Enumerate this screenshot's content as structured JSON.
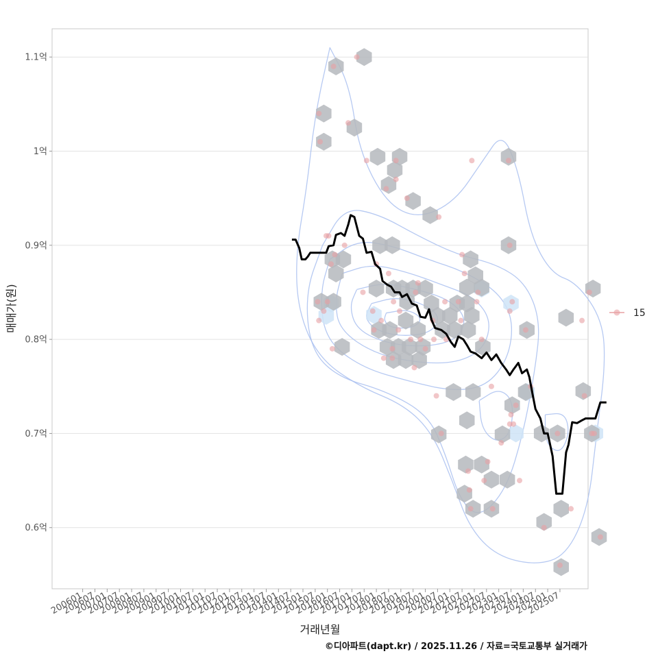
{
  "chart_data": {
    "type": "scatter",
    "title": "",
    "xlabel": "거래년월",
    "ylabel": "매매가(원)",
    "caption": "©디아파트(dapt.kr) / 2025.11.26 / 자료=국토교통부 실거래가",
    "legend": {
      "position": "right",
      "entries": [
        "15"
      ]
    },
    "x_ticks": [
      "200601",
      "200607",
      "200701",
      "200707",
      "200801",
      "200807",
      "200901",
      "200907",
      "201001",
      "201007",
      "201101",
      "201107",
      "201201",
      "201207",
      "201301",
      "201307",
      "201401",
      "201407",
      "201501",
      "201507",
      "201601",
      "201607",
      "201701",
      "201707",
      "201801",
      "201807",
      "201901",
      "201907",
      "202001",
      "202007",
      "202101",
      "202107",
      "202201",
      "202207",
      "202301",
      "202307",
      "202401",
      "202407",
      "202501",
      "202507"
    ],
    "y_ticks": [
      {
        "value": 0.6,
        "label": "0.6억"
      },
      {
        "value": 0.7,
        "label": "0.7억"
      },
      {
        "value": 0.8,
        "label": "0.8억"
      },
      {
        "value": 0.9,
        "label": "0.9억"
      },
      {
        "value": 1.0,
        "label": "1억"
      },
      {
        "value": 1.1,
        "label": "1.1억"
      }
    ],
    "xlim": [
      -2.5,
      41.3
    ],
    "ylim": [
      0.535,
      1.13
    ],
    "x_unit": "half-year index (0 = 200601)",
    "y_unit": "억원",
    "points": [
      [
        19.2,
        0.84
      ],
      [
        19.3,
        0.82
      ],
      [
        19.7,
        0.83
      ],
      [
        19.9,
        0.91
      ],
      [
        20.1,
        0.91
      ],
      [
        20.3,
        0.88
      ],
      [
        20.0,
        0.84
      ],
      [
        20.4,
        0.79
      ],
      [
        20.5,
        1.09
      ],
      [
        19.3,
        1.04
      ],
      [
        19.4,
        1.01
      ],
      [
        21.7,
        1.03
      ],
      [
        21.4,
        0.9
      ],
      [
        20.6,
        0.89
      ],
      [
        22.4,
        1.1
      ],
      [
        22.9,
        0.85
      ],
      [
        23.2,
        0.99
      ],
      [
        23.7,
        0.83
      ],
      [
        23.8,
        0.81
      ],
      [
        24.0,
        0.88
      ],
      [
        24.4,
        0.82
      ],
      [
        24.6,
        0.78
      ],
      [
        24.8,
        0.96
      ],
      [
        25.0,
        0.87
      ],
      [
        25.3,
        0.79
      ],
      [
        25.3,
        0.78
      ],
      [
        25.4,
        0.84
      ],
      [
        25.6,
        0.97
      ],
      [
        25.6,
        0.99
      ],
      [
        25.9,
        0.83
      ],
      [
        25.8,
        0.81
      ],
      [
        26.5,
        0.95
      ],
      [
        26.8,
        0.8
      ],
      [
        27.1,
        0.77
      ],
      [
        27.2,
        0.85
      ],
      [
        27.4,
        0.86
      ],
      [
        27.6,
        0.8
      ],
      [
        28.0,
        0.79
      ],
      [
        28.6,
        0.82
      ],
      [
        28.7,
        0.8
      ],
      [
        28.9,
        0.74
      ],
      [
        29.3,
        0.7
      ],
      [
        29.1,
        0.93
      ],
      [
        29.6,
        0.84
      ],
      [
        29.7,
        0.8
      ],
      [
        30.7,
        0.84
      ],
      [
        30.9,
        0.82
      ],
      [
        31.0,
        0.89
      ],
      [
        31.2,
        0.87
      ],
      [
        31.5,
        0.66
      ],
      [
        31.6,
        0.64
      ],
      [
        31.7,
        0.62
      ],
      [
        31.8,
        0.99
      ],
      [
        32.2,
        0.84
      ],
      [
        32.6,
        0.8
      ],
      [
        32.3,
        0.85
      ],
      [
        32.8,
        0.65
      ],
      [
        33.1,
        0.67
      ],
      [
        33.5,
        0.62
      ],
      [
        33.4,
        0.75
      ],
      [
        34.2,
        0.69
      ],
      [
        34.8,
        0.99
      ],
      [
        34.9,
        0.9
      ],
      [
        35.1,
        0.84
      ],
      [
        34.9,
        0.83
      ],
      [
        34.9,
        0.71
      ],
      [
        35.0,
        0.72
      ],
      [
        35.2,
        0.71
      ],
      [
        35.4,
        0.73
      ],
      [
        35.7,
        0.65
      ],
      [
        36.2,
        0.81
      ],
      [
        36.6,
        0.75
      ],
      [
        37.7,
        0.6
      ],
      [
        38.8,
        0.7
      ],
      [
        39.0,
        0.56
      ],
      [
        39.9,
        0.62
      ],
      [
        40.8,
        0.82
      ],
      [
        41.0,
        0.74
      ],
      [
        41.4,
        0.85
      ],
      [
        41.6,
        0.7
      ],
      [
        41.8,
        0.7
      ],
      [
        42.3,
        0.59
      ]
    ],
    "hex_bins": [
      [
        20.7,
        1.09
      ],
      [
        19.7,
        1.04
      ],
      [
        19.7,
        1.01
      ],
      [
        22.2,
        1.025
      ],
      [
        23.0,
        1.1
      ],
      [
        24.1,
        0.994
      ],
      [
        25.9,
        0.994
      ],
      [
        25.5,
        0.98
      ],
      [
        25.0,
        0.964
      ],
      [
        27.0,
        0.947
      ],
      [
        28.4,
        0.932
      ],
      [
        24.3,
        0.9
      ],
      [
        25.3,
        0.9
      ],
      [
        20.4,
        0.885
      ],
      [
        21.3,
        0.885
      ],
      [
        20.7,
        0.87
      ],
      [
        24.0,
        0.854
      ],
      [
        25.4,
        0.854
      ],
      [
        26.1,
        0.854
      ],
      [
        27.0,
        0.854
      ],
      [
        28.0,
        0.854
      ],
      [
        19.5,
        0.84
      ],
      [
        20.5,
        0.84
      ],
      [
        26.5,
        0.84
      ],
      [
        28.5,
        0.838
      ],
      [
        30.6,
        0.838
      ],
      [
        31.4,
        0.838
      ],
      [
        29.0,
        0.825
      ],
      [
        30.0,
        0.825
      ],
      [
        31.8,
        0.825
      ],
      [
        26.4,
        0.82
      ],
      [
        24.2,
        0.81
      ],
      [
        25.1,
        0.81
      ],
      [
        27.4,
        0.81
      ],
      [
        29.4,
        0.81
      ],
      [
        30.4,
        0.81
      ],
      [
        31.5,
        0.81
      ],
      [
        36.3,
        0.81
      ],
      [
        21.2,
        0.792
      ],
      [
        24.9,
        0.792
      ],
      [
        25.8,
        0.792
      ],
      [
        26.7,
        0.792
      ],
      [
        27.8,
        0.792
      ],
      [
        32.7,
        0.792
      ],
      [
        26.4,
        0.778
      ],
      [
        25.4,
        0.778
      ],
      [
        27.5,
        0.778
      ],
      [
        31.7,
        0.885
      ],
      [
        32.1,
        0.868
      ],
      [
        32.6,
        0.855
      ],
      [
        31.4,
        0.855
      ],
      [
        30.3,
        0.744
      ],
      [
        31.9,
        0.744
      ],
      [
        39.5,
        0.823
      ],
      [
        40.9,
        0.745
      ],
      [
        31.4,
        0.714
      ],
      [
        29.1,
        0.699
      ],
      [
        34.3,
        0.699
      ],
      [
        35.1,
        0.73
      ],
      [
        36.2,
        0.744
      ],
      [
        37.5,
        0.7
      ],
      [
        38.8,
        0.7
      ],
      [
        41.6,
        0.7
      ],
      [
        31.3,
        0.667
      ],
      [
        32.6,
        0.667
      ],
      [
        33.4,
        0.651
      ],
      [
        34.7,
        0.651
      ],
      [
        31.2,
        0.636
      ],
      [
        31.9,
        0.62
      ],
      [
        33.4,
        0.62
      ],
      [
        37.7,
        0.606
      ],
      [
        39.1,
        0.62
      ],
      [
        42.2,
        0.59
      ],
      [
        39.1,
        0.558
      ],
      [
        41.7,
        0.854
      ],
      [
        34.8,
        0.9
      ],
      [
        34.8,
        0.994
      ]
    ],
    "light_hex_bins": [
      [
        20.3,
        0.838
      ],
      [
        23.8,
        0.826
      ],
      [
        32.6,
        0.854
      ],
      [
        35.0,
        0.838
      ],
      [
        35.4,
        0.7
      ],
      [
        36.3,
        0.744
      ],
      [
        41.9,
        0.7
      ],
      [
        19.9,
        0.825
      ]
    ],
    "median_line": [
      [
        17.1,
        0.906
      ],
      [
        17.4,
        0.906
      ],
      [
        17.7,
        0.897
      ],
      [
        17.9,
        0.885
      ],
      [
        18.2,
        0.885
      ],
      [
        18.4,
        0.888
      ],
      [
        18.6,
        0.892
      ],
      [
        19.2,
        0.892
      ],
      [
        19.9,
        0.892
      ],
      [
        20.1,
        0.899
      ],
      [
        20.5,
        0.9
      ],
      [
        20.7,
        0.911
      ],
      [
        21.1,
        0.913
      ],
      [
        21.4,
        0.91
      ],
      [
        21.7,
        0.922
      ],
      [
        21.9,
        0.932
      ],
      [
        22.2,
        0.93
      ],
      [
        22.6,
        0.91
      ],
      [
        22.9,
        0.907
      ],
      [
        23.2,
        0.892
      ],
      [
        23.6,
        0.893
      ],
      [
        23.9,
        0.88
      ],
      [
        24.3,
        0.875
      ],
      [
        24.5,
        0.862
      ],
      [
        24.9,
        0.858
      ],
      [
        25.2,
        0.856
      ],
      [
        25.5,
        0.85
      ],
      [
        25.9,
        0.85
      ],
      [
        26.1,
        0.845
      ],
      [
        26.5,
        0.848
      ],
      [
        26.9,
        0.838
      ],
      [
        27.3,
        0.836
      ],
      [
        27.6,
        0.824
      ],
      [
        28.0,
        0.823
      ],
      [
        28.3,
        0.832
      ],
      [
        28.5,
        0.821
      ],
      [
        28.8,
        0.812
      ],
      [
        29.3,
        0.81
      ],
      [
        29.7,
        0.806
      ],
      [
        30.1,
        0.797
      ],
      [
        30.4,
        0.792
      ],
      [
        30.7,
        0.803
      ],
      [
        31.1,
        0.8
      ],
      [
        31.4,
        0.794
      ],
      [
        31.7,
        0.787
      ],
      [
        32.1,
        0.785
      ],
      [
        32.6,
        0.78
      ],
      [
        33.0,
        0.786
      ],
      [
        33.4,
        0.778
      ],
      [
        33.8,
        0.784
      ],
      [
        34.2,
        0.775
      ],
      [
        34.6,
        0.768
      ],
      [
        34.9,
        0.762
      ],
      [
        35.2,
        0.768
      ],
      [
        35.6,
        0.775
      ],
      [
        35.9,
        0.764
      ],
      [
        36.3,
        0.768
      ],
      [
        36.5,
        0.76
      ],
      [
        36.7,
        0.746
      ],
      [
        37.0,
        0.726
      ],
      [
        37.4,
        0.716
      ],
      [
        37.7,
        0.7
      ],
      [
        38.0,
        0.7
      ],
      [
        38.4,
        0.676
      ],
      [
        38.7,
        0.636
      ],
      [
        39.2,
        0.636
      ],
      [
        39.5,
        0.68
      ],
      [
        39.7,
        0.688
      ],
      [
        40.0,
        0.712
      ],
      [
        40.4,
        0.711
      ],
      [
        40.8,
        0.714
      ],
      [
        41.1,
        0.716
      ],
      [
        41.9,
        0.716
      ],
      [
        42.3,
        0.733
      ],
      [
        42.8,
        0.733
      ]
    ],
    "density_contours": [
      [
        [
          20.2,
          1.11
        ],
        [
          21.8,
          1.07
        ],
        [
          22.6,
          1.0
        ],
        [
          24.8,
          0.945
        ],
        [
          27.4,
          0.928
        ],
        [
          30.4,
          0.946
        ],
        [
          32.7,
          0.99
        ],
        [
          34.3,
          1.02
        ],
        [
          35.6,
          0.98
        ],
        [
          36.6,
          0.91
        ],
        [
          38.3,
          0.87
        ],
        [
          40.4,
          0.86
        ],
        [
          42.5,
          0.82
        ],
        [
          42.7,
          0.77
        ],
        [
          42.0,
          0.7
        ],
        [
          41.3,
          0.62
        ],
        [
          39.5,
          0.57
        ],
        [
          37.0,
          0.56
        ],
        [
          33.8,
          0.57
        ],
        [
          31.6,
          0.6
        ],
        [
          30.2,
          0.65
        ],
        [
          28.6,
          0.7
        ],
        [
          26.3,
          0.73
        ],
        [
          22.6,
          0.75
        ],
        [
          19.3,
          0.78
        ],
        [
          17.6,
          0.83
        ],
        [
          17.4,
          0.89
        ],
        [
          18.3,
          0.96
        ],
        [
          19.0,
          1.04
        ],
        [
          20.2,
          1.11
        ]
      ],
      [
        [
          19.6,
          0.9
        ],
        [
          21.4,
          0.94
        ],
        [
          24.2,
          0.933
        ],
        [
          27.4,
          0.91
        ],
        [
          30.6,
          0.89
        ],
        [
          33.8,
          0.88
        ],
        [
          36.2,
          0.86
        ],
        [
          37.4,
          0.82
        ],
        [
          37.0,
          0.77
        ],
        [
          36.0,
          0.7
        ],
        [
          34.6,
          0.64
        ],
        [
          32.4,
          0.61
        ],
        [
          30.8,
          0.63
        ],
        [
          29.6,
          0.68
        ],
        [
          28.2,
          0.72
        ],
        [
          24.8,
          0.745
        ],
        [
          20.8,
          0.76
        ],
        [
          18.6,
          0.79
        ],
        [
          18.2,
          0.85
        ],
        [
          19.6,
          0.9
        ]
      ],
      [
        [
          20.2,
          0.885
        ],
        [
          22.4,
          0.905
        ],
        [
          25.2,
          0.9
        ],
        [
          28.2,
          0.885
        ],
        [
          31.2,
          0.872
        ],
        [
          34.0,
          0.85
        ],
        [
          35.2,
          0.82
        ],
        [
          34.8,
          0.78
        ],
        [
          33.0,
          0.75
        ],
        [
          30.2,
          0.745
        ],
        [
          26.8,
          0.755
        ],
        [
          22.8,
          0.77
        ],
        [
          19.8,
          0.8
        ],
        [
          19.4,
          0.85
        ],
        [
          20.2,
          0.885
        ]
      ],
      [
        [
          21.2,
          0.87
        ],
        [
          23.6,
          0.88
        ],
        [
          26.4,
          0.872
        ],
        [
          29.4,
          0.858
        ],
        [
          32.0,
          0.845
        ],
        [
          33.4,
          0.82
        ],
        [
          32.8,
          0.79
        ],
        [
          30.6,
          0.775
        ],
        [
          27.4,
          0.775
        ],
        [
          23.8,
          0.785
        ],
        [
          21.0,
          0.81
        ],
        [
          20.6,
          0.84
        ],
        [
          21.2,
          0.87
        ]
      ],
      [
        [
          22.4,
          0.853
        ],
        [
          24.6,
          0.86
        ],
        [
          27.4,
          0.853
        ],
        [
          30.0,
          0.842
        ],
        [
          31.4,
          0.822
        ],
        [
          30.6,
          0.8
        ],
        [
          28.2,
          0.792
        ],
        [
          25.0,
          0.795
        ],
        [
          22.4,
          0.81
        ],
        [
          21.8,
          0.835
        ],
        [
          22.4,
          0.853
        ]
      ],
      [
        [
          23.6,
          0.838
        ],
        [
          25.6,
          0.845
        ],
        [
          27.8,
          0.838
        ],
        [
          29.2,
          0.825
        ],
        [
          28.6,
          0.808
        ],
        [
          26.4,
          0.803
        ],
        [
          24.2,
          0.808
        ],
        [
          23.0,
          0.822
        ],
        [
          23.6,
          0.838
        ]
      ],
      [
        [
          24.8,
          0.828
        ],
        [
          26.6,
          0.832
        ],
        [
          27.8,
          0.822
        ],
        [
          27.0,
          0.812
        ],
        [
          25.2,
          0.812
        ],
        [
          24.6,
          0.82
        ],
        [
          24.8,
          0.828
        ]
      ],
      [
        [
          37.8,
          0.72
        ],
        [
          39.4,
          0.722
        ],
        [
          39.8,
          0.7
        ],
        [
          39.0,
          0.678
        ],
        [
          37.8,
          0.69
        ],
        [
          37.8,
          0.72
        ]
      ],
      [
        [
          32.4,
          0.735
        ],
        [
          34.0,
          0.748
        ],
        [
          35.2,
          0.735
        ],
        [
          35.0,
          0.7
        ],
        [
          33.8,
          0.69
        ],
        [
          32.6,
          0.705
        ],
        [
          32.4,
          0.735
        ]
      ]
    ],
    "colors": {
      "points": "#e8a0a4",
      "hex": "#b5b9bd",
      "hex_light": "#cfe4f7",
      "contour": "#a9bff0",
      "median_line": "#000000",
      "grid": "#e2e2e2",
      "panel_border": "#c8c8c8"
    }
  }
}
